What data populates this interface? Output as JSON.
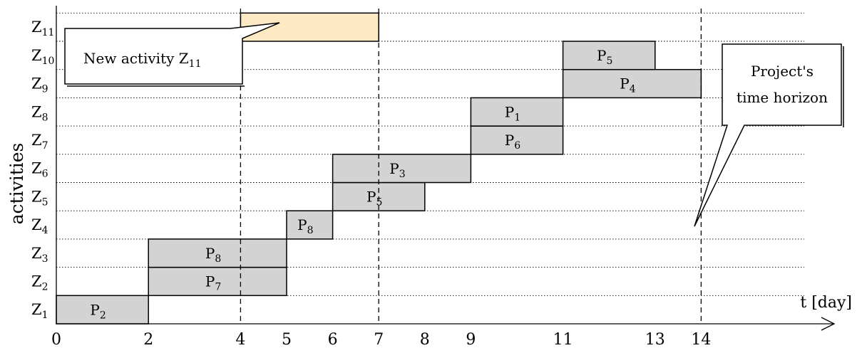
{
  "y_axis_label": "activities",
  "x_axis_label": "t [day]",
  "callouts": {
    "new_activity_prefix": "New activity Z",
    "new_activity_sub": "11",
    "horizon_line1": "Project's",
    "horizon_line2": "time horizon"
  },
  "colors": {
    "bar_fill": "#d3d3d3",
    "new_bar_fill": "#fde9c3",
    "grid": "#000000"
  },
  "chart_data": {
    "type": "gantt",
    "x_ticks": [
      0,
      2,
      4,
      5,
      6,
      7,
      8,
      9,
      11,
      13,
      14
    ],
    "rows": [
      "1",
      "2",
      "3",
      "4",
      "5",
      "6",
      "7",
      "8",
      "9",
      "10",
      "11"
    ],
    "row_prefix": "Z",
    "bar_prefix": "P",
    "horizon": 14,
    "dashed_markers": [
      4,
      7,
      14
    ],
    "bars": [
      {
        "row": 1,
        "start": 0,
        "end": 2,
        "label": "2"
      },
      {
        "row": 2,
        "start": 2,
        "end": 5,
        "label": "7"
      },
      {
        "row": 3,
        "start": 2,
        "end": 5,
        "label": "8"
      },
      {
        "row": 4,
        "start": 5,
        "end": 6,
        "label": "8"
      },
      {
        "row": 5,
        "start": 6,
        "end": 8,
        "label": "5"
      },
      {
        "row": 6,
        "start": 6,
        "end": 9,
        "label": "3"
      },
      {
        "row": 7,
        "start": 9,
        "end": 11,
        "label": "6"
      },
      {
        "row": 8,
        "start": 9,
        "end": 11,
        "label": "1"
      },
      {
        "row": 9,
        "start": 11,
        "end": 14,
        "label": "4"
      },
      {
        "row": 10,
        "start": 11,
        "end": 13,
        "label": "5"
      },
      {
        "row": 11,
        "start": 4,
        "end": 7,
        "label": "",
        "new": true
      }
    ]
  }
}
